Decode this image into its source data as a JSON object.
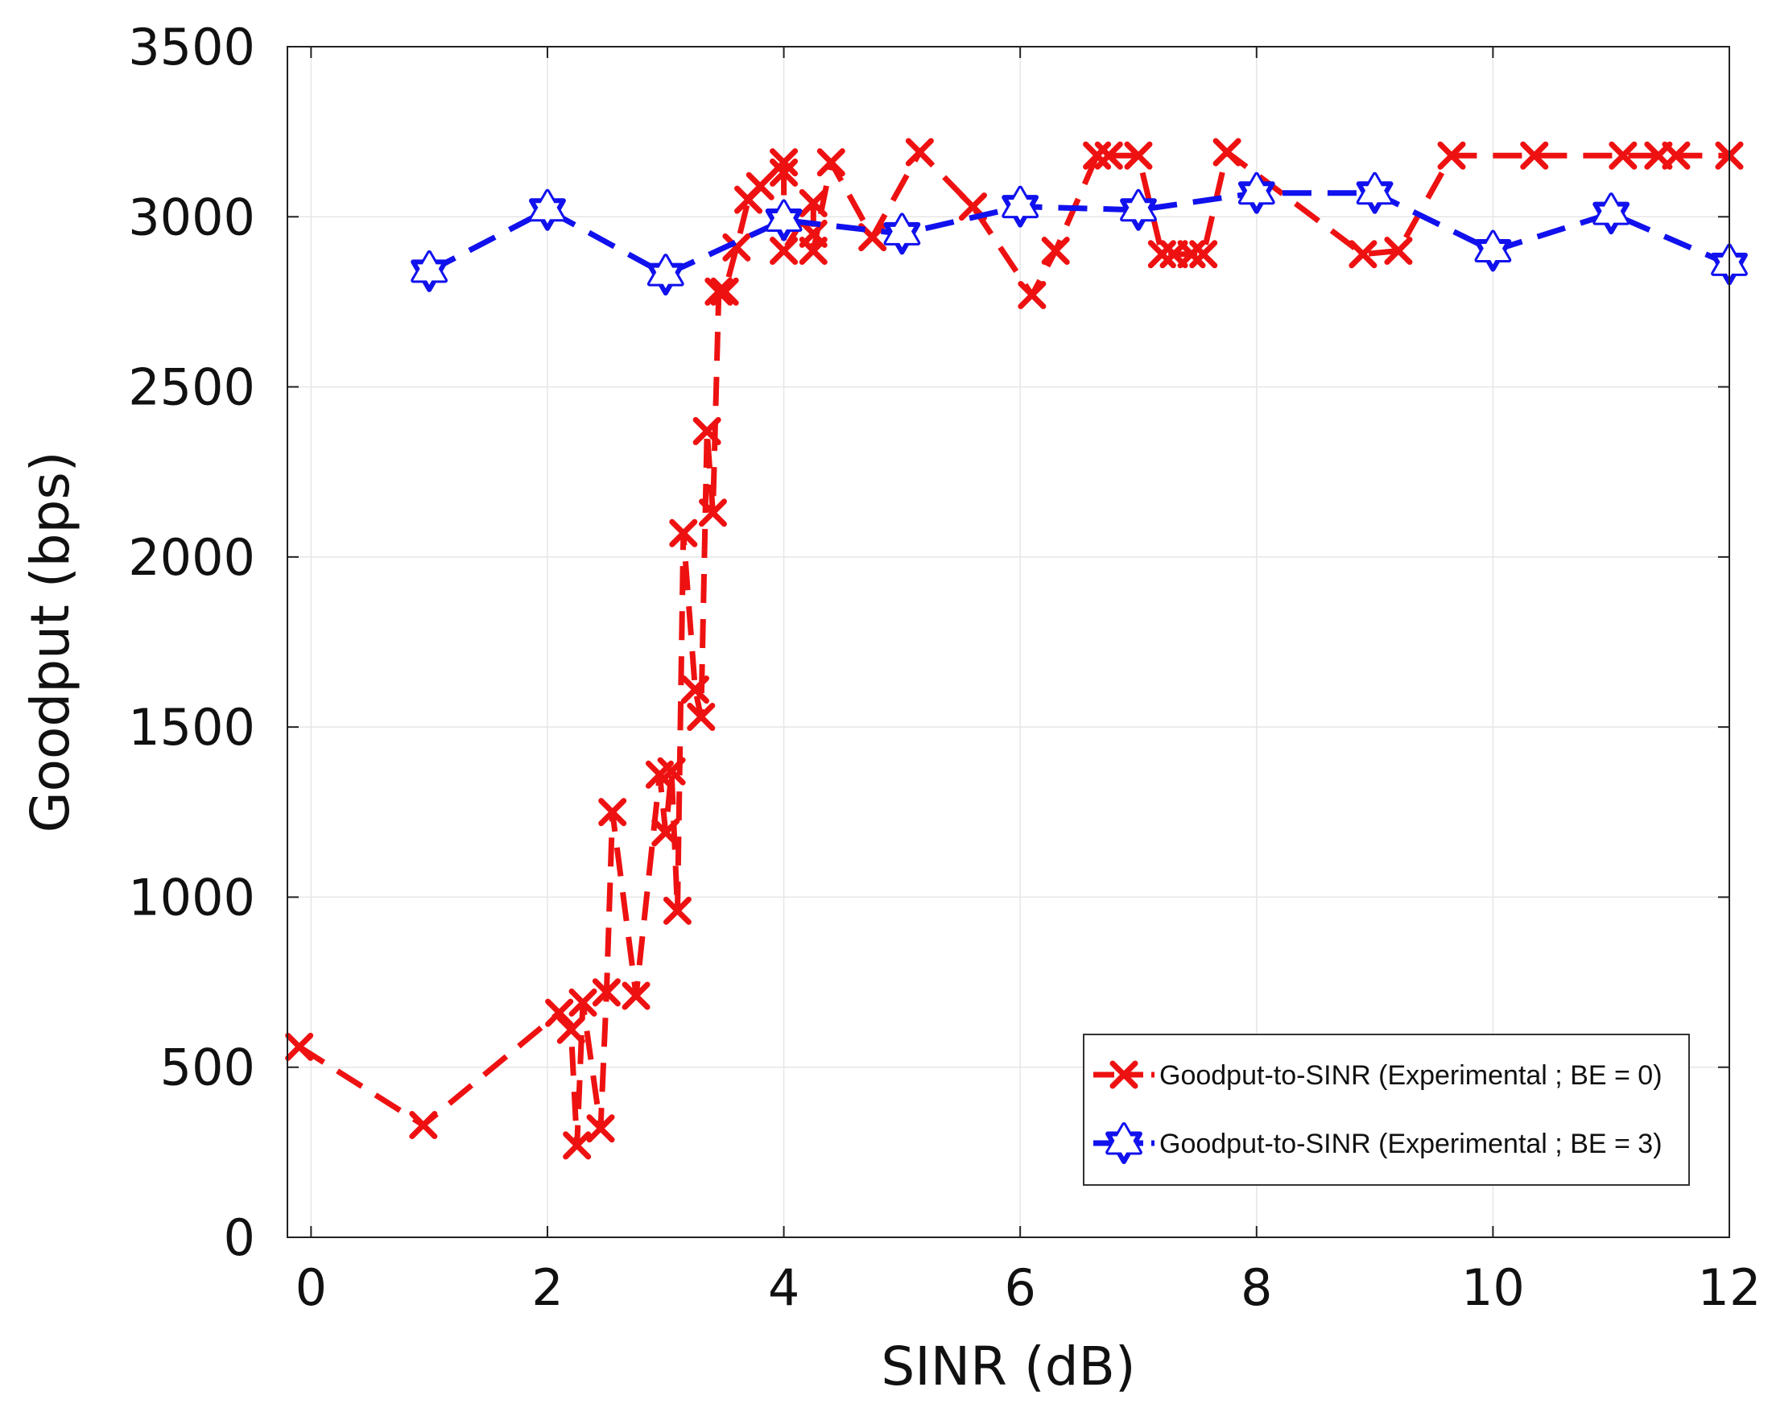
{
  "chart_data": {
    "type": "line",
    "title": "",
    "xlabel": "SINR (dB)",
    "ylabel": "Goodput (bps)",
    "xlim": [
      -0.2,
      12
    ],
    "ylim": [
      0,
      3500
    ],
    "grid": true,
    "xticks": [
      0,
      2,
      4,
      6,
      8,
      10,
      12
    ],
    "xtick_labels": [
      "0",
      "2",
      "4",
      "6",
      "8",
      "10",
      "12"
    ],
    "yticks": [
      0,
      500,
      1000,
      1500,
      2000,
      2500,
      3000,
      3500
    ],
    "ytick_labels": [
      "0",
      "500",
      "1000",
      "1500",
      "2000",
      "2500",
      "3000",
      "3500"
    ],
    "legend_position": "bottom-right",
    "series": [
      {
        "name": "Goodput-to-SINR (Experimental ; BE = 0)",
        "color": "#ee1111",
        "marker": "x",
        "linestyle": "dashed",
        "x": [
          -0.1,
          0.95,
          2.1,
          2.2,
          2.25,
          2.3,
          2.45,
          2.5,
          2.55,
          2.75,
          2.95,
          3.0,
          3.05,
          3.1,
          3.15,
          3.25,
          3.3,
          3.35,
          3.4,
          3.45,
          3.5,
          3.6,
          3.7,
          3.8,
          4.0,
          4.0,
          4.0,
          4.25,
          4.25,
          4.25,
          4.4,
          4.75,
          5.15,
          5.6,
          6.1,
          6.3,
          6.65,
          6.75,
          7.0,
          7.2,
          7.3,
          7.45,
          7.55,
          7.75,
          8.9,
          9.2,
          9.65,
          10.35,
          11.1,
          11.4,
          11.55,
          12.0
        ],
        "y": [
          560,
          330,
          660,
          610,
          270,
          690,
          320,
          720,
          1250,
          710,
          1360,
          1190,
          1370,
          960,
          2070,
          1610,
          1530,
          2370,
          2130,
          2780,
          2780,
          2910,
          3050,
          3090,
          3160,
          3130,
          2900,
          3040,
          2950,
          2900,
          3160,
          2940,
          3190,
          3030,
          2770,
          2900,
          3180,
          3180,
          3180,
          2890,
          2890,
          2890,
          2890,
          3190,
          2890,
          2900,
          3180,
          3180,
          3180,
          3180,
          3180,
          3180
        ]
      },
      {
        "name": "Goodput-to-SINR (Experimental ; BE = 3)",
        "color": "#1111ee",
        "marker": "hexagram",
        "linestyle": "dashed",
        "x": [
          1,
          2,
          3,
          4,
          5,
          6,
          7,
          8,
          9,
          10,
          11,
          12
        ],
        "y": [
          2840,
          3020,
          2830,
          2990,
          2950,
          3030,
          3020,
          3070,
          3070,
          2900,
          3010,
          2860
        ]
      }
    ]
  }
}
